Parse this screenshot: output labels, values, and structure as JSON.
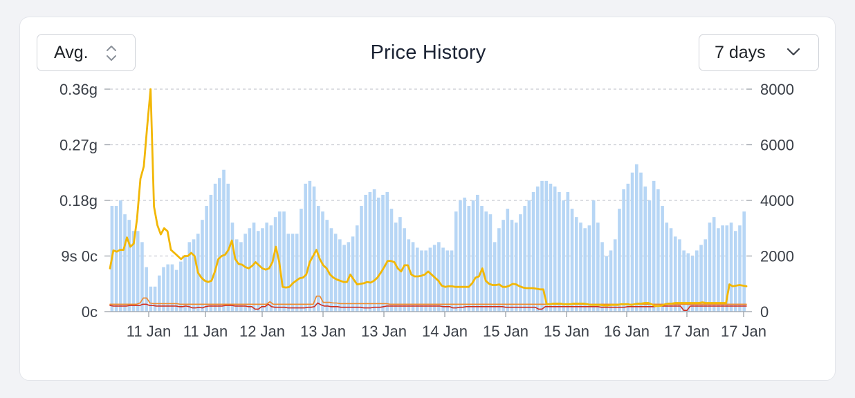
{
  "controls": {
    "aggregation": {
      "label": "Avg.",
      "icon": "chevron-up-down-icon"
    },
    "range": {
      "label": "7 days",
      "icon": "chevron-down-icon"
    }
  },
  "chart_data": {
    "type": "line",
    "title": "Price History",
    "colors": {
      "volume_bars": "#b7d6f5",
      "price_line": "#f2b705",
      "low_line": "#f08a2c",
      "floor_line": "#d12e1f",
      "grid": "#c8cbd1"
    },
    "grid": true,
    "x_tick_labels": [
      "11 Jan",
      "11 Jan",
      "12 Jan",
      "13 Jan",
      "13 Jan",
      "14 Jan",
      "15 Jan",
      "15 Jan",
      "16 Jan",
      "17 Jan",
      "17 Jan"
    ],
    "y_left": {
      "tick_labels": [
        "0c",
        "9s 0c",
        "0.18g",
        "0.27g",
        "0.36g"
      ],
      "tick_values": [
        0,
        0.09,
        0.18,
        0.27,
        0.36
      ],
      "range": [
        0,
        0.36
      ],
      "unit": "g"
    },
    "y_right": {
      "tick_labels": [
        "0",
        "2000",
        "4000",
        "6000",
        "8000"
      ],
      "tick_values": [
        0,
        2000,
        4000,
        6000,
        8000
      ],
      "range": [
        0,
        8000
      ]
    },
    "series": [
      {
        "type": "bar",
        "axis": "right",
        "values": [
          3800,
          3800,
          4000,
          3500,
          3300,
          2900,
          2900,
          2500,
          1600,
          900,
          900,
          1300,
          1600,
          1700,
          1700,
          1500,
          1800,
          2000,
          2500,
          2600,
          2800,
          3300,
          3800,
          4200,
          4600,
          4800,
          5100,
          4600,
          3200,
          2600,
          2500,
          2800,
          3000,
          3200,
          2900,
          3000,
          3200,
          3100,
          3400,
          3600,
          3600,
          2800,
          2800,
          2800,
          3700,
          4600,
          4700,
          4500,
          3800,
          3600,
          3300,
          3000,
          2800,
          2600,
          2400,
          2500,
          2700,
          3100,
          3800,
          4200,
          4300,
          4400,
          4100,
          4200,
          4300,
          3700,
          3200,
          3400,
          3000,
          2600,
          2500,
          2300,
          2200,
          2200,
          2300,
          2400,
          2500,
          2300,
          2200,
          2200,
          3600,
          4000,
          4100,
          3800,
          4000,
          4200,
          3800,
          3600,
          3500,
          2500,
          3000,
          3300,
          3700,
          3300,
          3200,
          3500,
          3800,
          4000,
          4300,
          4500,
          4700,
          4700,
          4600,
          4500,
          4300,
          4000,
          4300,
          3700,
          3400,
          3200,
          3000,
          3100,
          4000,
          3200,
          2500,
          2000,
          2200,
          2600,
          3700,
          4400,
          4600,
          5000,
          5300,
          5000,
          4500,
          4000,
          4700,
          4400,
          3800,
          3200,
          3000,
          2700,
          2600,
          2200,
          2100,
          2000,
          2200,
          2400,
          2600,
          3200,
          3400,
          3000,
          3100,
          3100,
          3200,
          2900,
          3100,
          3600
        ]
      },
      {
        "name": "",
        "type": "line",
        "axis": "left",
        "values": [
          0.07,
          0.099,
          0.097,
          0.1,
          0.1,
          0.12,
          0.105,
          0.11,
          0.15,
          0.215,
          0.235,
          0.3,
          0.36,
          0.17,
          0.14,
          0.125,
          0.135,
          0.13,
          0.1,
          0.095,
          0.09,
          0.085,
          0.09,
          0.09,
          0.095,
          0.09,
          0.063,
          0.055,
          0.05,
          0.048,
          0.05,
          0.065,
          0.085,
          0.09,
          0.092,
          0.1,
          0.115,
          0.085,
          0.077,
          0.076,
          0.072,
          0.07,
          0.074,
          0.08,
          0.075,
          0.07,
          0.068,
          0.07,
          0.08,
          0.105,
          0.08,
          0.04,
          0.039,
          0.04,
          0.046,
          0.05,
          0.054,
          0.055,
          0.06,
          0.08,
          0.09,
          0.1,
          0.085,
          0.075,
          0.07,
          0.06,
          0.055,
          0.052,
          0.05,
          0.048,
          0.048,
          0.06,
          0.052,
          0.044,
          0.045,
          0.046,
          0.048,
          0.047,
          0.05,
          0.055,
          0.063,
          0.072,
          0.082,
          0.082,
          0.08,
          0.07,
          0.065,
          0.075,
          0.075,
          0.06,
          0.057,
          0.057,
          0.058,
          0.06,
          0.065,
          0.06,
          0.055,
          0.05,
          0.042,
          0.04,
          0.041,
          0.041,
          0.04,
          0.04,
          0.04,
          0.04,
          0.04,
          0.046,
          0.055,
          0.057,
          0.07,
          0.05,
          0.045,
          0.043,
          0.043,
          0.044,
          0.04,
          0.04,
          0.042,
          0.045,
          0.044,
          0.041,
          0.039,
          0.038,
          0.038,
          0.038,
          0.037,
          0.036,
          0.036,
          0.012,
          0.012,
          0.013,
          0.013,
          0.013,
          0.012,
          0.012,
          0.012,
          0.013,
          0.013,
          0.013,
          0.013,
          0.012,
          0.011,
          0.011,
          0.011,
          0.011,
          0.01,
          0.01,
          0.011,
          0.011,
          0.011,
          0.012,
          0.012,
          0.012,
          0.011,
          0.012,
          0.013,
          0.013,
          0.014,
          0.014,
          0.012,
          0.009,
          0.009,
          0.01,
          0.012,
          0.013,
          0.013,
          0.014,
          0.014,
          0.014,
          0.014,
          0.014,
          0.014,
          0.014,
          0.014,
          0.015,
          0.014,
          0.014,
          0.014,
          0.014,
          0.014,
          0.014,
          0.014,
          0.044,
          0.041,
          0.042,
          0.043,
          0.042,
          0.041
        ]
      },
      {
        "name": "",
        "type": "line",
        "axis": "left",
        "values": [
          0.012,
          0.012,
          0.012,
          0.012,
          0.012,
          0.012,
          0.012,
          0.012,
          0.012,
          0.014,
          0.022,
          0.022,
          0.014,
          0.013,
          0.013,
          0.013,
          0.013,
          0.013,
          0.013,
          0.013,
          0.013,
          0.012,
          0.012,
          0.012,
          0.012,
          0.012,
          0.012,
          0.012,
          0.012,
          0.012,
          0.012,
          0.012,
          0.012,
          0.012,
          0.012,
          0.012,
          0.012,
          0.012,
          0.012,
          0.012,
          0.012,
          0.012,
          0.012,
          0.012,
          0.012,
          0.012,
          0.012,
          0.012,
          0.016,
          0.012,
          0.012,
          0.012,
          0.012,
          0.012,
          0.012,
          0.012,
          0.012,
          0.012,
          0.012,
          0.012,
          0.012,
          0.012,
          0.025,
          0.025,
          0.015,
          0.015,
          0.015,
          0.014,
          0.014,
          0.013,
          0.013,
          0.013,
          0.013,
          0.013,
          0.013,
          0.013,
          0.013,
          0.013,
          0.013,
          0.013,
          0.013,
          0.013,
          0.013,
          0.013,
          0.012,
          0.012,
          0.012,
          0.012,
          0.012,
          0.012,
          0.012,
          0.012,
          0.012,
          0.012,
          0.012,
          0.012,
          0.012,
          0.012,
          0.012,
          0.012,
          0.012,
          0.012,
          0.012,
          0.012,
          0.012,
          0.012,
          0.012,
          0.012,
          0.012,
          0.012,
          0.012,
          0.012,
          0.012,
          0.012,
          0.012,
          0.012,
          0.012,
          0.012,
          0.012,
          0.012,
          0.012,
          0.012,
          0.012,
          0.012,
          0.012,
          0.012,
          0.012,
          0.012,
          0.012,
          0.012,
          0.012,
          0.012,
          0.012,
          0.012,
          0.012,
          0.012,
          0.012,
          0.012,
          0.012,
          0.012,
          0.012,
          0.012,
          0.012,
          0.012,
          0.012,
          0.012,
          0.012,
          0.012,
          0.012,
          0.012,
          0.012,
          0.012,
          0.012,
          0.012,
          0.012,
          0.012,
          0.012,
          0.012,
          0.012,
          0.012,
          0.012,
          0.012,
          0.012,
          0.012,
          0.012,
          0.012,
          0.012,
          0.012,
          0.012,
          0.012,
          0.012,
          0.012,
          0.012,
          0.012,
          0.012,
          0.012,
          0.012,
          0.012,
          0.012,
          0.012,
          0.012,
          0.012,
          0.012,
          0.012,
          0.012,
          0.012,
          0.012,
          0.012,
          0.012,
          0.012,
          0.012,
          0.012
        ]
      },
      {
        "name": "",
        "type": "line",
        "axis": "left",
        "values": [
          0.01,
          0.009,
          0.009,
          0.009,
          0.009,
          0.009,
          0.01,
          0.01,
          0.01,
          0.01,
          0.012,
          0.012,
          0.01,
          0.01,
          0.009,
          0.009,
          0.009,
          0.009,
          0.009,
          0.009,
          0.009,
          0.008,
          0.008,
          0.009,
          0.008,
          0.006,
          0.006,
          0.007,
          0.006,
          0.008,
          0.009,
          0.009,
          0.009,
          0.009,
          0.009,
          0.01,
          0.01,
          0.01,
          0.009,
          0.009,
          0.009,
          0.009,
          0.008,
          0.008,
          0.004,
          0.004,
          0.008,
          0.008,
          0.012,
          0.008,
          0.007,
          0.007,
          0.007,
          0.007,
          0.006,
          0.006,
          0.006,
          0.006,
          0.006,
          0.006,
          0.007,
          0.007,
          0.008,
          0.014,
          0.011,
          0.009,
          0.009,
          0.008,
          0.008,
          0.008,
          0.007,
          0.007,
          0.007,
          0.007,
          0.007,
          0.007,
          0.007,
          0.006,
          0.006,
          0.006,
          0.007,
          0.007,
          0.007,
          0.008,
          0.009,
          0.009,
          0.009,
          0.009,
          0.009,
          0.009,
          0.009,
          0.009,
          0.009,
          0.009,
          0.009,
          0.009,
          0.009,
          0.009,
          0.009,
          0.009,
          0.009,
          0.008,
          0.008,
          0.008,
          0.006,
          0.006,
          0.007,
          0.007,
          0.008,
          0.008,
          0.008,
          0.008,
          0.008,
          0.008,
          0.008,
          0.008,
          0.008,
          0.008,
          0.008,
          0.008,
          0.007,
          0.007,
          0.007,
          0.007,
          0.007,
          0.007,
          0.007,
          0.007,
          0.007,
          0.007,
          0.004,
          0.004,
          0.008,
          0.008,
          0.008,
          0.008,
          0.008,
          0.008,
          0.008,
          0.008,
          0.008,
          0.008,
          0.008,
          0.008,
          0.008,
          0.008,
          0.008,
          0.008,
          0.008,
          0.007,
          0.007,
          0.007,
          0.007,
          0.007,
          0.007,
          0.007,
          0.007,
          0.008,
          0.008,
          0.008,
          0.008,
          0.008,
          0.008,
          0.008,
          0.008,
          0.008,
          0.009,
          0.009,
          0.009,
          0.009,
          0.009,
          0.009,
          0.009,
          0.009,
          0.002,
          0.002,
          0.009,
          0.009,
          0.009,
          0.009,
          0.009,
          0.009,
          0.009,
          0.009,
          0.009,
          0.009,
          0.009,
          0.009,
          0.009,
          0.009,
          0.009,
          0.009,
          0.009,
          0.009
        ]
      }
    ]
  }
}
